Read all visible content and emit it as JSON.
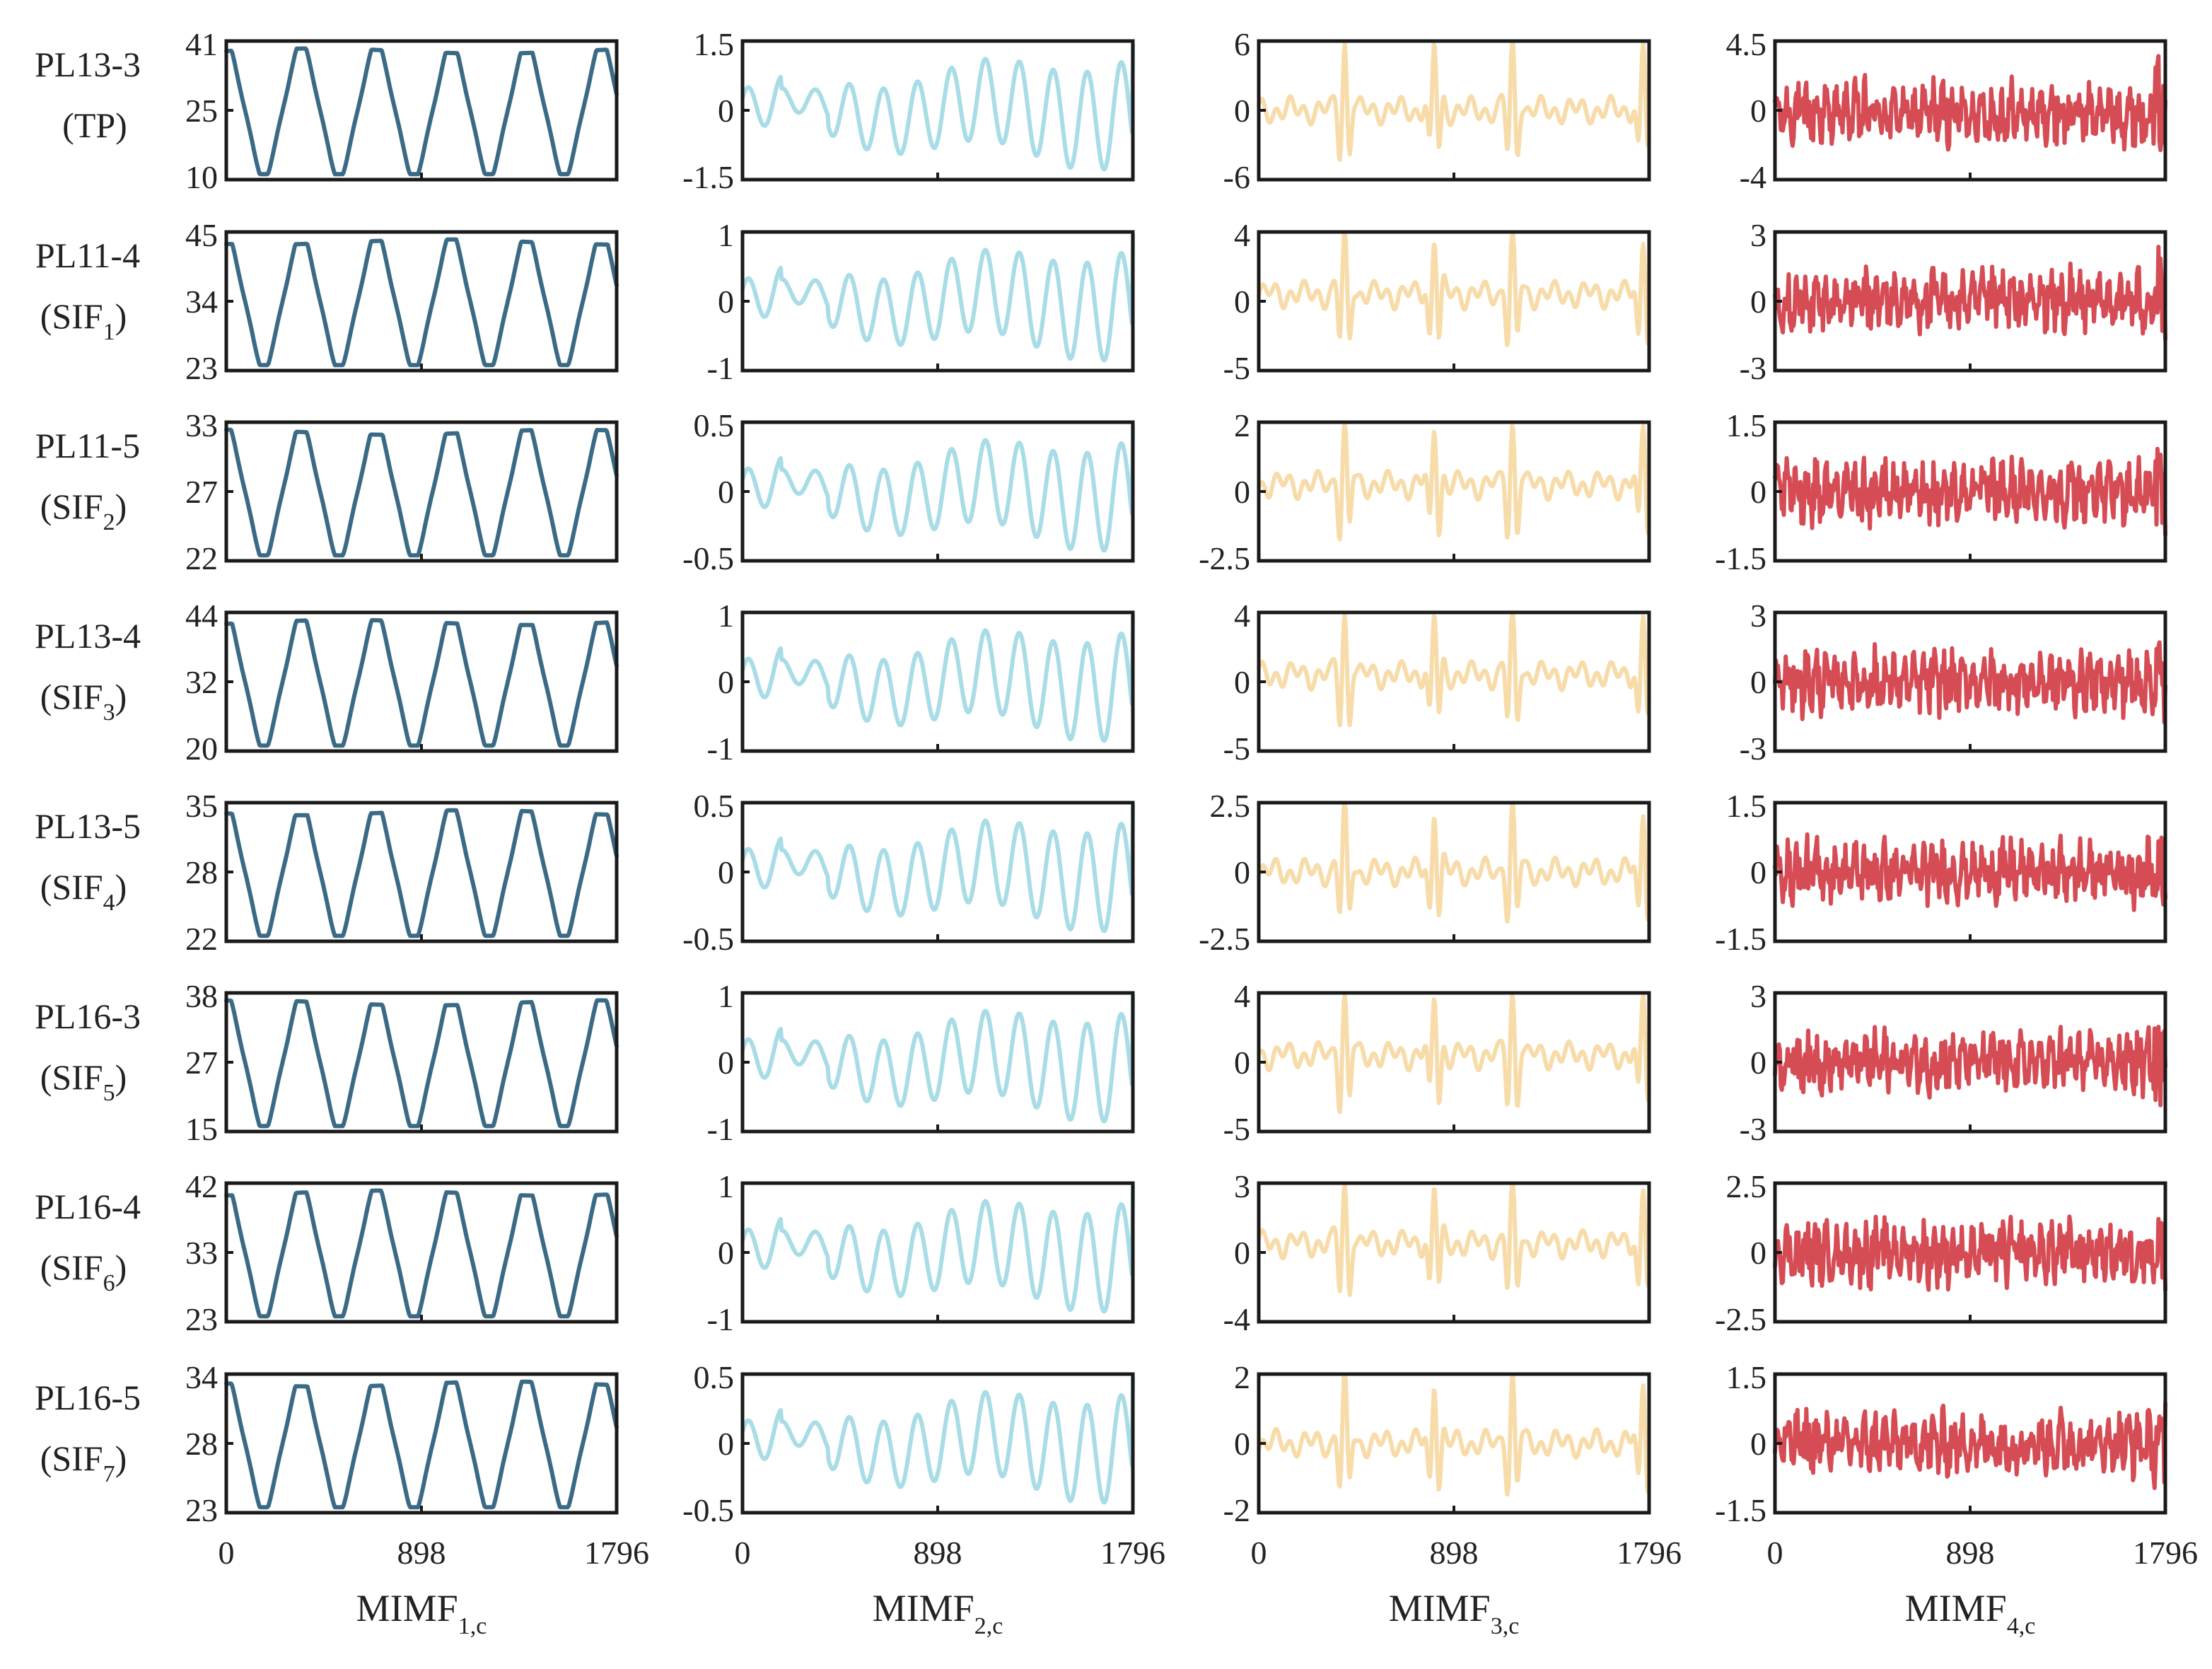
{
  "chart_data": {
    "type": "line",
    "layout": "grid 8 rows x 4 columns of small-multiple line plots",
    "x": {
      "min": 0,
      "max": 1796,
      "ticks": [
        "0",
        "898",
        "1796"
      ]
    },
    "columns": [
      {
        "label": "MIMF",
        "sub": "1,c",
        "color": "#3a6a86",
        "pattern": "slow"
      },
      {
        "label": "MIMF",
        "sub": "2,c",
        "color": "#a8dce6",
        "pattern": "medium"
      },
      {
        "label": "MIMF",
        "sub": "3,c",
        "color": "#f7dcaa",
        "pattern": "burst"
      },
      {
        "label": "MIMF",
        "sub": "4,c",
        "color": "#d64c55",
        "pattern": "noise"
      }
    ],
    "rows": [
      {
        "name": "PL13-3",
        "tag": "(TP)",
        "tag_sub": "",
        "ylims": [
          [
            10,
            41
          ],
          [
            -1.5,
            1.5
          ],
          [
            -6,
            6
          ],
          [
            -4,
            4.5
          ]
        ],
        "yticks": [
          [
            "10",
            "25",
            "41"
          ],
          [
            "-1.5",
            "0",
            "1.5"
          ],
          [
            "-6",
            "0",
            "6"
          ],
          [
            "-4",
            "0",
            "4.5"
          ]
        ]
      },
      {
        "name": "PL11-4",
        "tag": "(SIF",
        "tag_sub": "1",
        "ylims": [
          [
            23,
            45
          ],
          [
            -1,
            1
          ],
          [
            -5,
            4
          ],
          [
            -3,
            3
          ]
        ],
        "yticks": [
          [
            "23",
            "34",
            "45"
          ],
          [
            "-1",
            "0",
            "1"
          ],
          [
            "-5",
            "0",
            "4"
          ],
          [
            "-3",
            "0",
            "3"
          ]
        ]
      },
      {
        "name": "PL11-5",
        "tag": "(SIF",
        "tag_sub": "2",
        "ylims": [
          [
            22,
            33
          ],
          [
            -0.5,
            0.5
          ],
          [
            -2.5,
            2
          ],
          [
            -1.5,
            1.5
          ]
        ],
        "yticks": [
          [
            "22",
            "27",
            "33"
          ],
          [
            "-0.5",
            "0",
            "0.5"
          ],
          [
            "-2.5",
            "0",
            "2"
          ],
          [
            "-1.5",
            "0",
            "1.5"
          ]
        ]
      },
      {
        "name": "PL13-4",
        "tag": "(SIF",
        "tag_sub": "3",
        "ylims": [
          [
            20,
            44
          ],
          [
            -1,
            1
          ],
          [
            -5,
            4
          ],
          [
            -3,
            3
          ]
        ],
        "yticks": [
          [
            "20",
            "32",
            "44"
          ],
          [
            "-1",
            "0",
            "1"
          ],
          [
            "-5",
            "0",
            "4"
          ],
          [
            "-3",
            "0",
            "3"
          ]
        ]
      },
      {
        "name": "PL13-5",
        "tag": "(SIF",
        "tag_sub": "4",
        "ylims": [
          [
            22,
            35
          ],
          [
            -0.5,
            0.5
          ],
          [
            -2.5,
            2.5
          ],
          [
            -1.5,
            1.5
          ]
        ],
        "yticks": [
          [
            "22",
            "28",
            "35"
          ],
          [
            "-0.5",
            "0",
            "0.5"
          ],
          [
            "-2.5",
            "0",
            "2.5"
          ],
          [
            "-1.5",
            "0",
            "1.5"
          ]
        ]
      },
      {
        "name": "PL16-3",
        "tag": "(SIF",
        "tag_sub": "5",
        "ylims": [
          [
            15,
            38
          ],
          [
            -1,
            1
          ],
          [
            -5,
            4
          ],
          [
            -3,
            3
          ]
        ],
        "yticks": [
          [
            "15",
            "27",
            "38"
          ],
          [
            "-1",
            "0",
            "1"
          ],
          [
            "-5",
            "0",
            "4"
          ],
          [
            "-3",
            "0",
            "3"
          ]
        ]
      },
      {
        "name": "PL16-4",
        "tag": "(SIF",
        "tag_sub": "6",
        "ylims": [
          [
            23,
            42
          ],
          [
            -1,
            1
          ],
          [
            -4,
            3
          ],
          [
            -2.5,
            2.5
          ]
        ],
        "yticks": [
          [
            "23",
            "33",
            "42"
          ],
          [
            "-1",
            "0",
            "1"
          ],
          [
            "-4",
            "0",
            "3"
          ],
          [
            "-2.5",
            "0",
            "2.5"
          ]
        ]
      },
      {
        "name": "PL16-5",
        "tag": "(SIF",
        "tag_sub": "7",
        "ylims": [
          [
            23,
            34
          ],
          [
            -0.5,
            0.5
          ],
          [
            -2,
            2
          ],
          [
            -1.5,
            1.5
          ]
        ],
        "yticks": [
          [
            "23",
            "28",
            "34"
          ],
          [
            "-0.5",
            "0",
            "0.5"
          ],
          [
            "-2",
            "0",
            "2"
          ],
          [
            "-1.5",
            "0",
            "1.5"
          ]
        ]
      }
    ]
  }
}
